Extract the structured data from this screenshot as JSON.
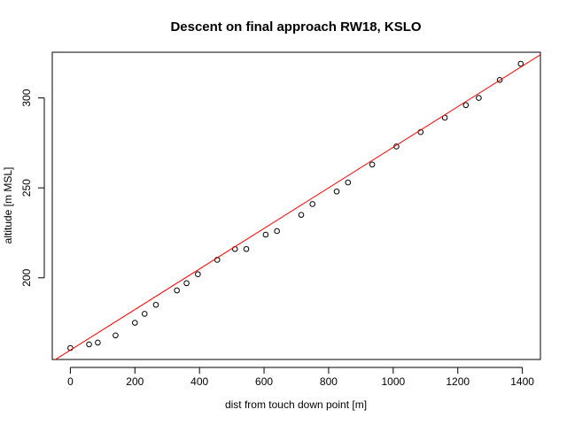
{
  "chart_data": {
    "type": "scatter",
    "title": "Descent on final approach RW18, KSLO",
    "xlabel": "dist from touch down point [m]",
    "ylabel": "altitude [m MSL]",
    "xlim": [
      -56,
      1456
    ],
    "ylim": [
      154.6,
      325.4
    ],
    "x_ticks": [
      0,
      200,
      400,
      600,
      800,
      1000,
      1200,
      1400
    ],
    "y_ticks": [
      200,
      250,
      300
    ],
    "grid": false,
    "points": [
      {
        "x": 0,
        "y": 161
      },
      {
        "x": 58,
        "y": 163
      },
      {
        "x": 85,
        "y": 164
      },
      {
        "x": 140,
        "y": 168
      },
      {
        "x": 200,
        "y": 175
      },
      {
        "x": 230,
        "y": 180
      },
      {
        "x": 265,
        "y": 185
      },
      {
        "x": 330,
        "y": 193
      },
      {
        "x": 360,
        "y": 197
      },
      {
        "x": 395,
        "y": 202
      },
      {
        "x": 455,
        "y": 210
      },
      {
        "x": 510,
        "y": 216
      },
      {
        "x": 545,
        "y": 216
      },
      {
        "x": 605,
        "y": 224
      },
      {
        "x": 640,
        "y": 226
      },
      {
        "x": 715,
        "y": 235
      },
      {
        "x": 750,
        "y": 241
      },
      {
        "x": 825,
        "y": 248
      },
      {
        "x": 860,
        "y": 253
      },
      {
        "x": 935,
        "y": 263
      },
      {
        "x": 1010,
        "y": 273
      },
      {
        "x": 1085,
        "y": 281
      },
      {
        "x": 1160,
        "y": 289
      },
      {
        "x": 1225,
        "y": 296
      },
      {
        "x": 1265,
        "y": 300
      },
      {
        "x": 1330,
        "y": 310
      },
      {
        "x": 1395,
        "y": 319
      }
    ],
    "fit_line": {
      "x": [
        -56,
        1456
      ],
      "y": [
        153.5,
        324.0
      ],
      "color": "#ff0000"
    },
    "point_color": "#000000"
  }
}
